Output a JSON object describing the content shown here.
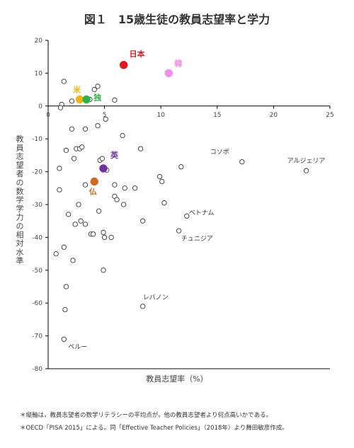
{
  "title": "図１　15歳生徒の教員志望率と学力",
  "chart_data": {
    "type": "scatter",
    "xlabel": "教員志望率（%）",
    "ylabel": "教員志望者の数学学力の相対水準",
    "xlim": [
      0,
      25
    ],
    "ylim": [
      -80,
      20
    ],
    "xticks": [
      0,
      5,
      10,
      15,
      20,
      25
    ],
    "yticks": [
      20,
      10,
      0,
      -10,
      -20,
      -30,
      -40,
      -50,
      -60,
      -70,
      -80
    ],
    "grid": false,
    "highlighted": [
      {
        "label": "日本",
        "x": 6.7,
        "y": 12.5,
        "color": "#e8141c"
      },
      {
        "label": "韓",
        "x": 10.7,
        "y": 10,
        "color": "#f48ee8"
      },
      {
        "label": "米",
        "x": 2.8,
        "y": 2,
        "color": "#f2b10e"
      },
      {
        "label": "独",
        "x": 3.4,
        "y": 2,
        "color": "#2bb24c"
      },
      {
        "label": "英",
        "x": 4.9,
        "y": -19,
        "color": "#7030a0"
      },
      {
        "label": "仏",
        "x": 4.1,
        "y": -23,
        "color": "#d2691e"
      }
    ],
    "annotations": [
      {
        "label": "コソボ",
        "x": 17.2,
        "y": -17
      },
      {
        "label": "アルジェリア",
        "x": 22.9,
        "y": -19.7
      },
      {
        "label": "ベトナム",
        "x": 12.1,
        "y": -34
      },
      {
        "label": "チュニジア",
        "x": 11.8,
        "y": -38
      },
      {
        "label": "レバノン",
        "x": 8.4,
        "y": -61
      },
      {
        "label": "ペルー",
        "x": 1.4,
        "y": -71
      }
    ],
    "points": [
      [
        1.4,
        7.5
      ],
      [
        1.2,
        0.5
      ],
      [
        1.1,
        -0.5
      ],
      [
        2.1,
        1.5
      ],
      [
        4.1,
        5
      ],
      [
        4.4,
        6
      ],
      [
        3.7,
        2
      ],
      [
        5.9,
        1.8
      ],
      [
        6.6,
        -9
      ],
      [
        5.1,
        -4
      ],
      [
        2.1,
        -7
      ],
      [
        3.3,
        -7
      ],
      [
        4.4,
        -6
      ],
      [
        2.5,
        -13
      ],
      [
        2.8,
        -13
      ],
      [
        3.0,
        -12.5
      ],
      [
        1.6,
        -13.5
      ],
      [
        2.3,
        -16
      ],
      [
        8.2,
        -13
      ],
      [
        1.0,
        -19
      ],
      [
        4.6,
        -16.5
      ],
      [
        5.2,
        -19.5
      ],
      [
        3.3,
        -24
      ],
      [
        5.9,
        -24
      ],
      [
        7.7,
        -25
      ],
      [
        9.9,
        -21.5
      ],
      [
        10.1,
        -23
      ],
      [
        11.8,
        -18.5
      ],
      [
        1.0,
        -25.5
      ],
      [
        5.9,
        -27.5
      ],
      [
        6.1,
        -28.5
      ],
      [
        6.7,
        -30
      ],
      [
        2.7,
        -30
      ],
      [
        1.8,
        -33
      ],
      [
        4.5,
        -32
      ],
      [
        10.3,
        -29.5
      ],
      [
        12.3,
        -33.5
      ],
      [
        2.4,
        -36
      ],
      [
        2.9,
        -35
      ],
      [
        3.3,
        -36
      ],
      [
        3.8,
        -39
      ],
      [
        4.0,
        -39
      ],
      [
        4.9,
        -38.5
      ],
      [
        5.0,
        -40
      ],
      [
        5.6,
        -40
      ],
      [
        8.4,
        -35
      ],
      [
        11.6,
        -38
      ],
      [
        1.4,
        -43
      ],
      [
        0.7,
        -45
      ],
      [
        2.2,
        -47
      ],
      [
        4.9,
        -50
      ],
      [
        1.6,
        -55
      ],
      [
        1.5,
        -62
      ],
      [
        8.4,
        -61
      ],
      [
        1.4,
        -71
      ],
      [
        17.2,
        -17
      ],
      [
        22.9,
        -19.7
      ],
      [
        4.8,
        -16
      ],
      [
        6.8,
        -25
      ]
    ]
  },
  "notes": {
    "note1": "＊縦軸は，教員志望者の数学リテラシーの平均点が，他の教員志望者より何点高いかである。",
    "note2": "＊OECD「PISA 2015」による。同「Effective Teacher Policies」（2018年）より舞田敏彦作成。"
  }
}
